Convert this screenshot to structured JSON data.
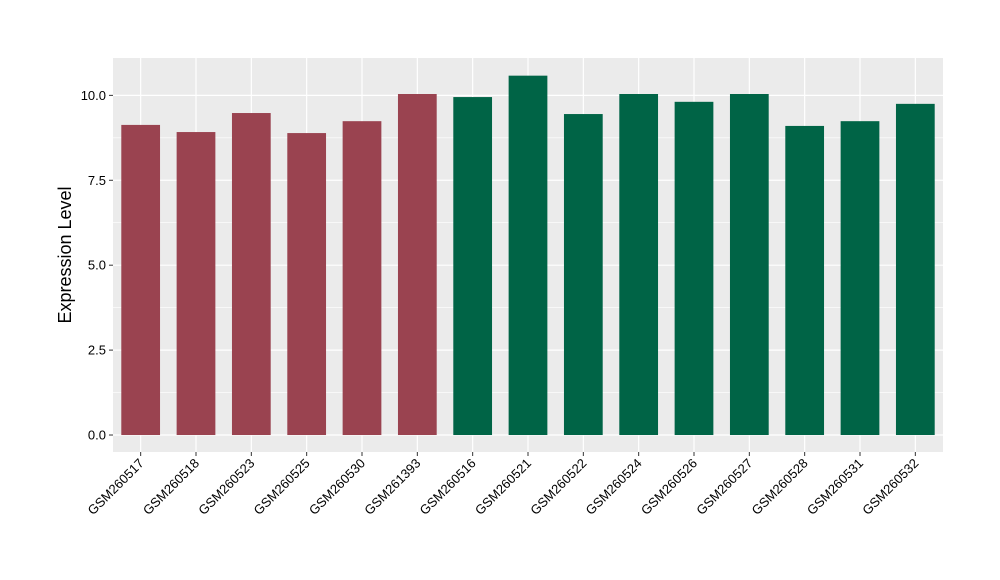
{
  "chart_data": {
    "type": "bar",
    "title": "",
    "xlabel": "",
    "ylabel": "Expression Level",
    "ylim": [
      -0.5,
      11.1
    ],
    "yticks": [
      "0.0",
      "2.5",
      "5.0",
      "7.5",
      "10.0"
    ],
    "ytick_values": [
      0,
      2.5,
      5,
      7.5,
      10
    ],
    "grid": true,
    "legend": "none",
    "panel_color": "#EBEBEB",
    "grid_color": "#FFFFFF",
    "categories": [
      "GSM260517",
      "GSM260518",
      "GSM260523",
      "GSM260525",
      "GSM260530",
      "GSM261393",
      "GSM260516",
      "GSM260521",
      "GSM260522",
      "GSM260524",
      "GSM260526",
      "GSM260527",
      "GSM260528",
      "GSM260531",
      "GSM260532"
    ],
    "values": [
      9.13,
      8.92,
      9.48,
      8.89,
      9.24,
      10.04,
      9.95,
      10.58,
      9.45,
      10.04,
      9.81,
      10.04,
      9.1,
      9.24,
      9.75
    ],
    "bar_colors": [
      "#9A4350",
      "#9A4350",
      "#9A4350",
      "#9A4350",
      "#9A4350",
      "#9A4350",
      "#006446",
      "#006446",
      "#006446",
      "#006446",
      "#006446",
      "#006446",
      "#006446",
      "#006446",
      "#006446"
    ]
  }
}
